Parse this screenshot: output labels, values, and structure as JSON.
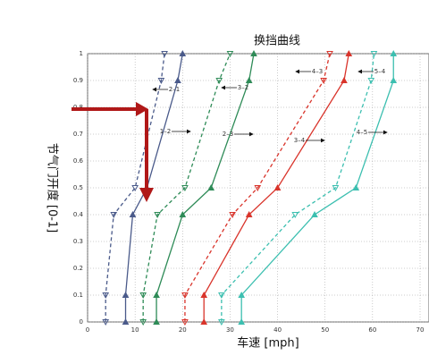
{
  "chart_data": {
    "type": "line",
    "title": "换挡曲线",
    "xlabel": "车速 [mph]",
    "ylabel": "节气门开度 [0-1]",
    "xlim": [
      0,
      70
    ],
    "ylim": [
      0,
      1
    ],
    "xticks": [
      0,
      10,
      20,
      30,
      40,
      50,
      60,
      70
    ],
    "yticks": [
      0,
      0.1,
      0.2,
      0.3,
      0.4,
      0.5,
      0.6,
      0.7,
      0.8,
      0.9,
      1
    ],
    "grid": true,
    "series": [
      {
        "name": "1–2",
        "color": "#4a5a8a",
        "linestyle": "solid",
        "marker": "up",
        "x": [
          8,
          8,
          9.5,
          12.5,
          19,
          20
        ],
        "values": [
          0,
          0.1,
          0.4,
          0.5,
          0.9,
          1
        ]
      },
      {
        "name": "2–1",
        "color": "#4a5a8a",
        "linestyle": "dashed",
        "marker": "down",
        "x": [
          3.8,
          3.8,
          5.5,
          10,
          15.5,
          16.2
        ],
        "values": [
          0,
          0.1,
          0.4,
          0.5,
          0.9,
          1
        ]
      },
      {
        "name": "2–3",
        "color": "#2e8b57",
        "linestyle": "solid",
        "marker": "up",
        "x": [
          14.5,
          14.5,
          20,
          26,
          34,
          35
        ],
        "values": [
          0,
          0.1,
          0.4,
          0.5,
          0.9,
          1
        ]
      },
      {
        "name": "3–2",
        "color": "#2e8b57",
        "linestyle": "dashed",
        "marker": "down",
        "x": [
          11.7,
          11.7,
          14.7,
          20.5,
          27.7,
          30
        ],
        "values": [
          0,
          0.1,
          0.4,
          0.5,
          0.9,
          1
        ]
      },
      {
        "name": "3–4",
        "color": "#d9342b",
        "linestyle": "solid",
        "marker": "up",
        "x": [
          24.5,
          24.5,
          34,
          40,
          54,
          55
        ],
        "values": [
          0,
          0.1,
          0.4,
          0.5,
          0.9,
          1
        ]
      },
      {
        "name": "4–3",
        "color": "#d9342b",
        "linestyle": "dashed",
        "marker": "down",
        "x": [
          20.5,
          20.5,
          30.5,
          35.8,
          49.7,
          51
        ],
        "values": [
          0,
          0.1,
          0.4,
          0.5,
          0.9,
          1
        ]
      },
      {
        "name": "4–5",
        "color": "#3cbfb0",
        "linestyle": "solid",
        "marker": "up",
        "x": [
          32.4,
          32.4,
          47.8,
          56.5,
          64.4,
          64.4
        ],
        "values": [
          0,
          0.1,
          0.4,
          0.5,
          0.9,
          1
        ]
      },
      {
        "name": "5–4",
        "color": "#3cbfb0",
        "linestyle": "dashed",
        "marker": "down",
        "x": [
          28.2,
          28.2,
          43.7,
          52.2,
          59.7,
          60.3
        ],
        "values": [
          0,
          0.1,
          0.4,
          0.5,
          0.9,
          1
        ]
      }
    ]
  }
}
